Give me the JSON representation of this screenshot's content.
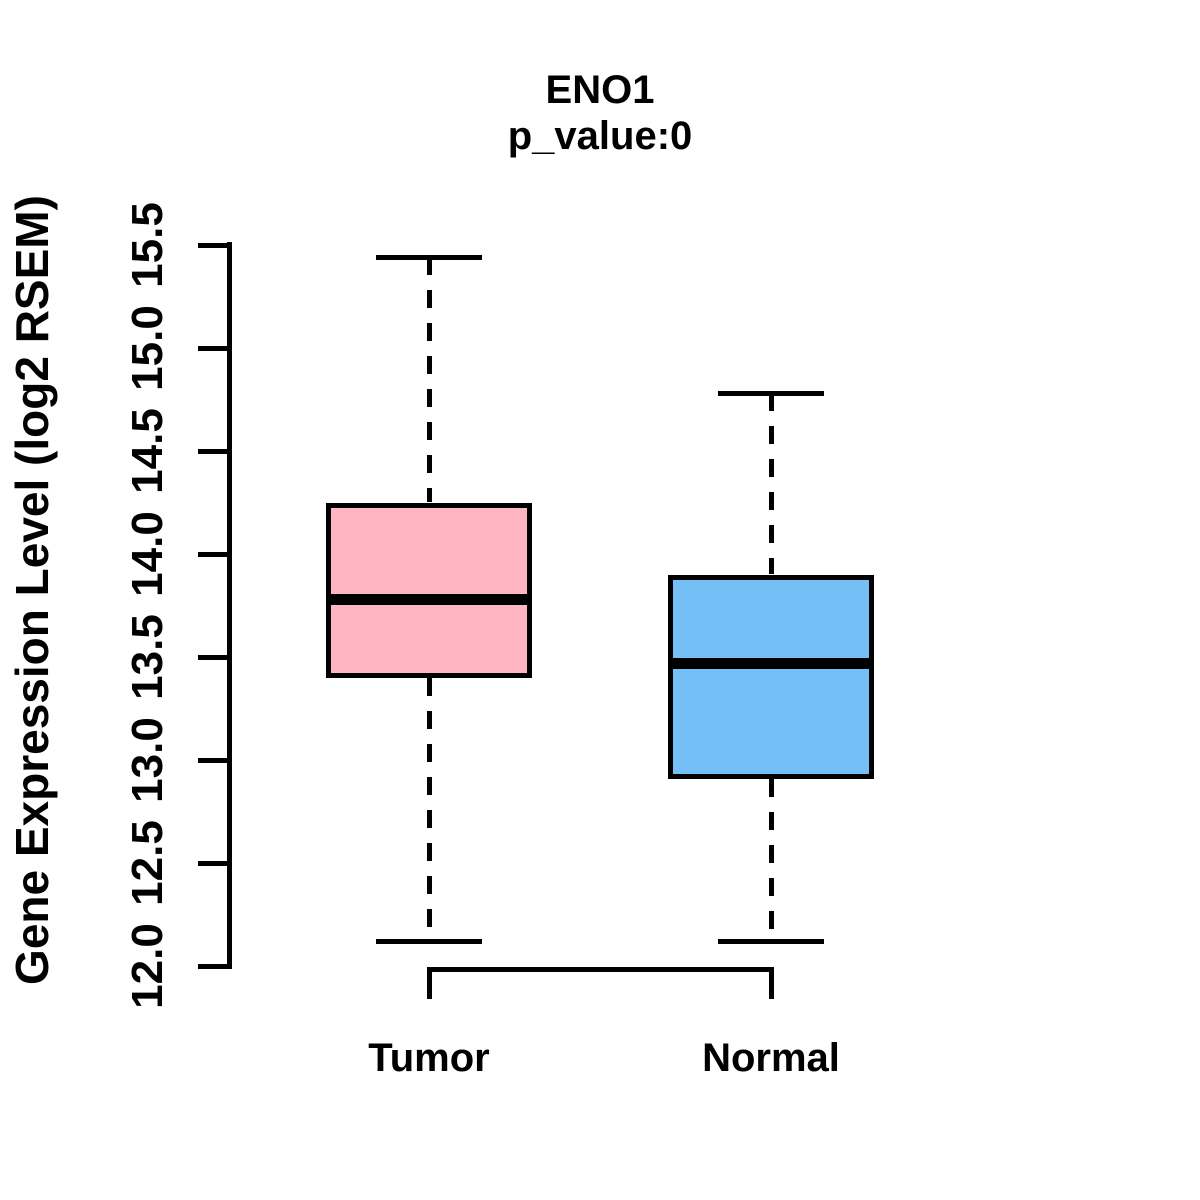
{
  "page": {
    "background": "#FFFFFF",
    "text_color": "#000000"
  },
  "chart_data": {
    "type": "boxplot",
    "title": "ENO1",
    "subtitle": "p_value:0",
    "ylabel": "Gene Expression Level (log2 RSEM)",
    "xlabel": "",
    "ylim": [
      12.0,
      15.5
    ],
    "y_ticks": [
      "12.0",
      "12.5",
      "13.0",
      "13.5",
      "14.0",
      "14.5",
      "15.0",
      "15.5"
    ],
    "categories": [
      "Tumor",
      "Normal"
    ],
    "grid": false,
    "legend": "none",
    "line_color": "#000000",
    "whisker_style": "dashed",
    "series": [
      {
        "name": "Tumor",
        "color": "#FFB6C1",
        "whisker_low": 12.12,
        "q1": 13.4,
        "median": 13.78,
        "q3": 14.25,
        "whisker_high": 15.44
      },
      {
        "name": "Normal",
        "color": "#74BFF5",
        "whisker_low": 12.12,
        "q1": 12.91,
        "median": 13.47,
        "q3": 13.9,
        "whisker_high": 14.78
      }
    ]
  }
}
